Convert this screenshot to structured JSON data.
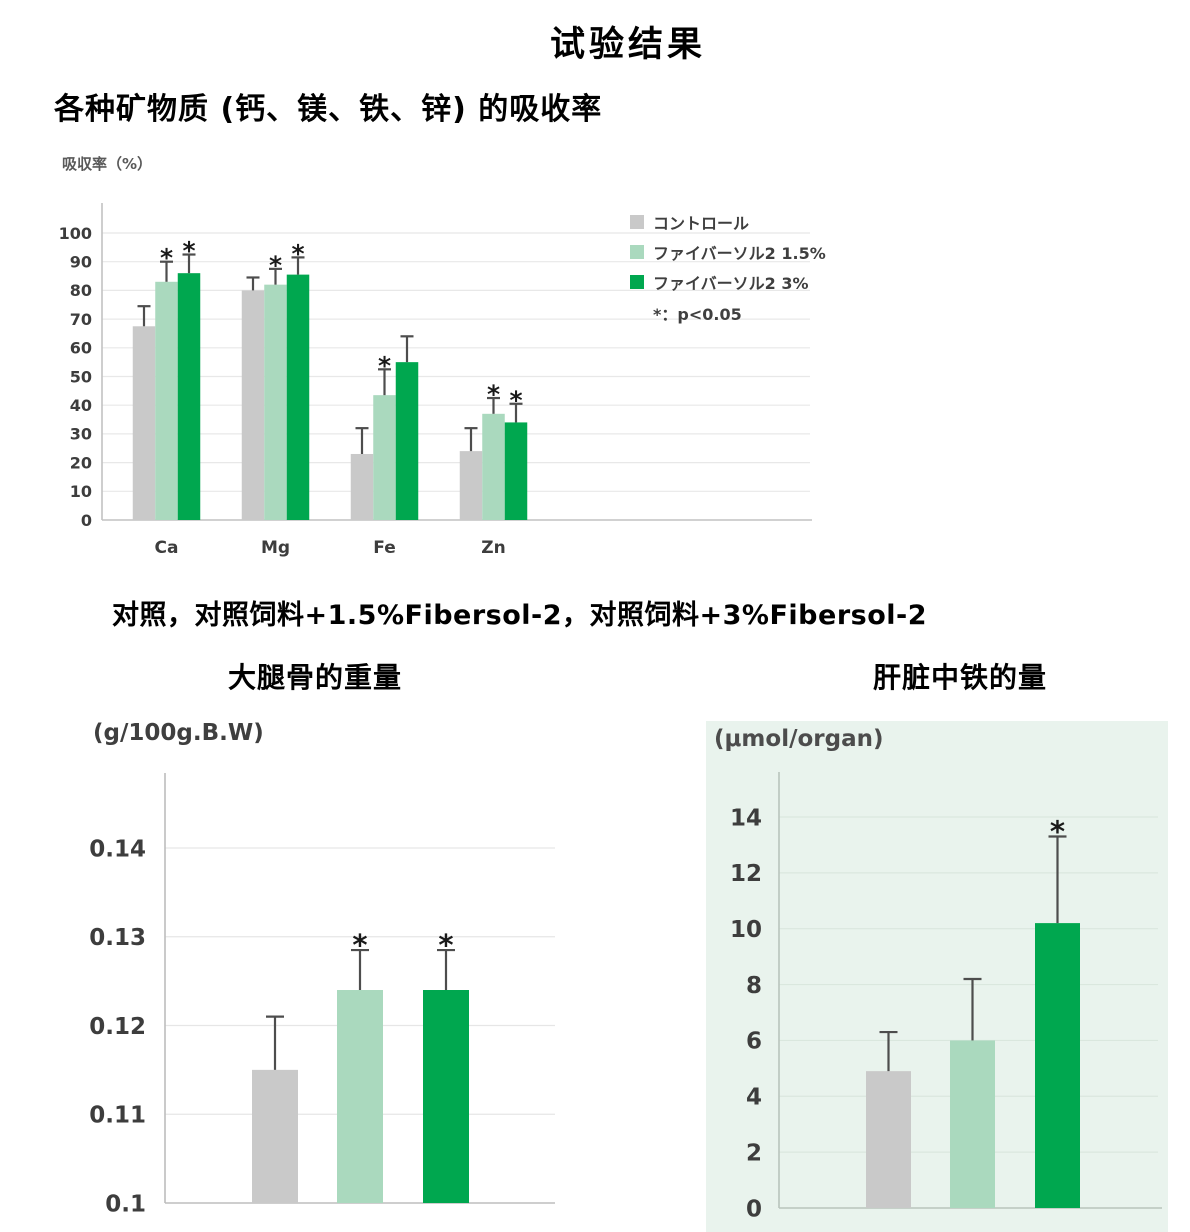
{
  "page": {
    "title": "试验结果",
    "subtitle": "各种矿物质 (钙、镁、铁、锌) 的吸收率",
    "group_note": "对照，对照饲料+1.5%Fibersol-2，对照饲料+3%Fibersol-2"
  },
  "colors": {
    "control": "#c9c9c9",
    "fibersol_1_5": "#aad9be",
    "fibersol_3": "#00a74f",
    "chart_grid": "#e8e8e8",
    "axis_line": "#c2c2c2",
    "error_bar": "#4d4d4d",
    "star": "#1a1a1a",
    "tick_text": "#3d3d3d",
    "mint_panel": "#e9f3ed",
    "mint_grid": "#dae7de",
    "mint_axis": "#b9c4bc"
  },
  "legend": {
    "items": [
      {
        "label": "コントロール",
        "color_key": "control"
      },
      {
        "label": "ファイバーソル2 1.5%",
        "color_key": "fibersol_1_5"
      },
      {
        "label": "ファイバーソル2 3%",
        "color_key": "fibersol_3"
      }
    ],
    "note": "*：p<0.05"
  },
  "chart_data": [
    {
      "id": "absorption",
      "type": "bar",
      "title": "各种矿物质 (钙、镁、铁、锌) 的吸收率",
      "ylabel": "吸収率（%）",
      "ylim": [
        0,
        100
      ],
      "yticks": [
        0,
        10,
        20,
        30,
        40,
        50,
        60,
        70,
        80,
        90,
        100
      ],
      "categories": [
        "Ca",
        "Mg",
        "Fe",
        "Zn"
      ],
      "grid": true,
      "legend_position": "inside-top-right",
      "significance_note": "*：p<0.05",
      "series": [
        {
          "name": "コントロール",
          "color_key": "control",
          "values": [
            67.5,
            80,
            23,
            24
          ],
          "error_top": [
            74.5,
            84.5,
            32,
            32
          ],
          "significant": [
            false,
            false,
            false,
            false
          ]
        },
        {
          "name": "ファイバーソル2 1.5%",
          "color_key": "fibersol_1_5",
          "values": [
            83,
            82,
            43.5,
            37
          ],
          "error_top": [
            90,
            87.5,
            52.5,
            42.5
          ],
          "significant": [
            true,
            true,
            true,
            true
          ]
        },
        {
          "name": "ファイバーソル2 3%",
          "color_key": "fibersol_3",
          "values": [
            86,
            85.5,
            55,
            34
          ],
          "error_top": [
            92.5,
            91.5,
            64,
            40.5
          ],
          "significant": [
            true,
            true,
            false,
            true
          ]
        }
      ]
    },
    {
      "id": "femur-weight",
      "type": "bar",
      "title": "大腿骨的重量",
      "ylabel": "(g/100g.B.W)",
      "ylim": [
        0.1,
        0.148
      ],
      "yticks": [
        0.1,
        0.11,
        0.12,
        0.13,
        0.14
      ],
      "grid": true,
      "bars": [
        {
          "group": "コントロール",
          "color_key": "control",
          "value": 0.115,
          "error_top": 0.121,
          "significant": false
        },
        {
          "group": "ファイバーソル2 1.5%",
          "color_key": "fibersol_1_5",
          "value": 0.124,
          "error_top": 0.1285,
          "significant": true
        },
        {
          "group": "ファイバーソル2 3%",
          "color_key": "fibersol_3",
          "value": 0.124,
          "error_top": 0.1285,
          "significant": true
        }
      ]
    },
    {
      "id": "liver-iron",
      "type": "bar",
      "title": "肝脏中铁的量",
      "ylabel": "(μmol/organ)",
      "ylim": [
        0,
        15.5
      ],
      "yticks": [
        0,
        2,
        4,
        6,
        8,
        10,
        12,
        14
      ],
      "grid": true,
      "background_key": "mint_panel",
      "bars": [
        {
          "group": "コントロール",
          "color_key": "control",
          "value": 4.9,
          "error_top": 6.3,
          "significant": false
        },
        {
          "group": "ファイバーソル2 1.5%",
          "color_key": "fibersol_1_5",
          "value": 6.0,
          "error_top": 8.2,
          "significant": false
        },
        {
          "group": "ファイバーソル2 3%",
          "color_key": "fibersol_3",
          "value": 10.2,
          "error_top": 13.3,
          "significant": true
        }
      ]
    }
  ]
}
